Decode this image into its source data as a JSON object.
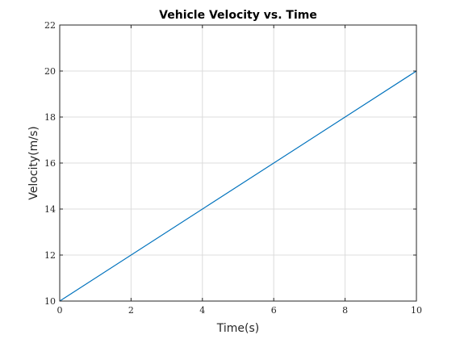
{
  "chart_data": {
    "type": "line",
    "title": "Vehicle Velocity vs. Time",
    "xlabel": "Time(s)",
    "ylabel": "Velocity(m/s)",
    "xlim": [
      0,
      10
    ],
    "ylim": [
      10,
      22
    ],
    "xticks": [
      0,
      2,
      4,
      6,
      8,
      10
    ],
    "yticks": [
      10,
      12,
      14,
      16,
      18,
      20,
      22
    ],
    "grid": true,
    "series": [
      {
        "color": "#0072BD",
        "x": [
          0,
          10
        ],
        "y": [
          10,
          20
        ]
      }
    ]
  }
}
